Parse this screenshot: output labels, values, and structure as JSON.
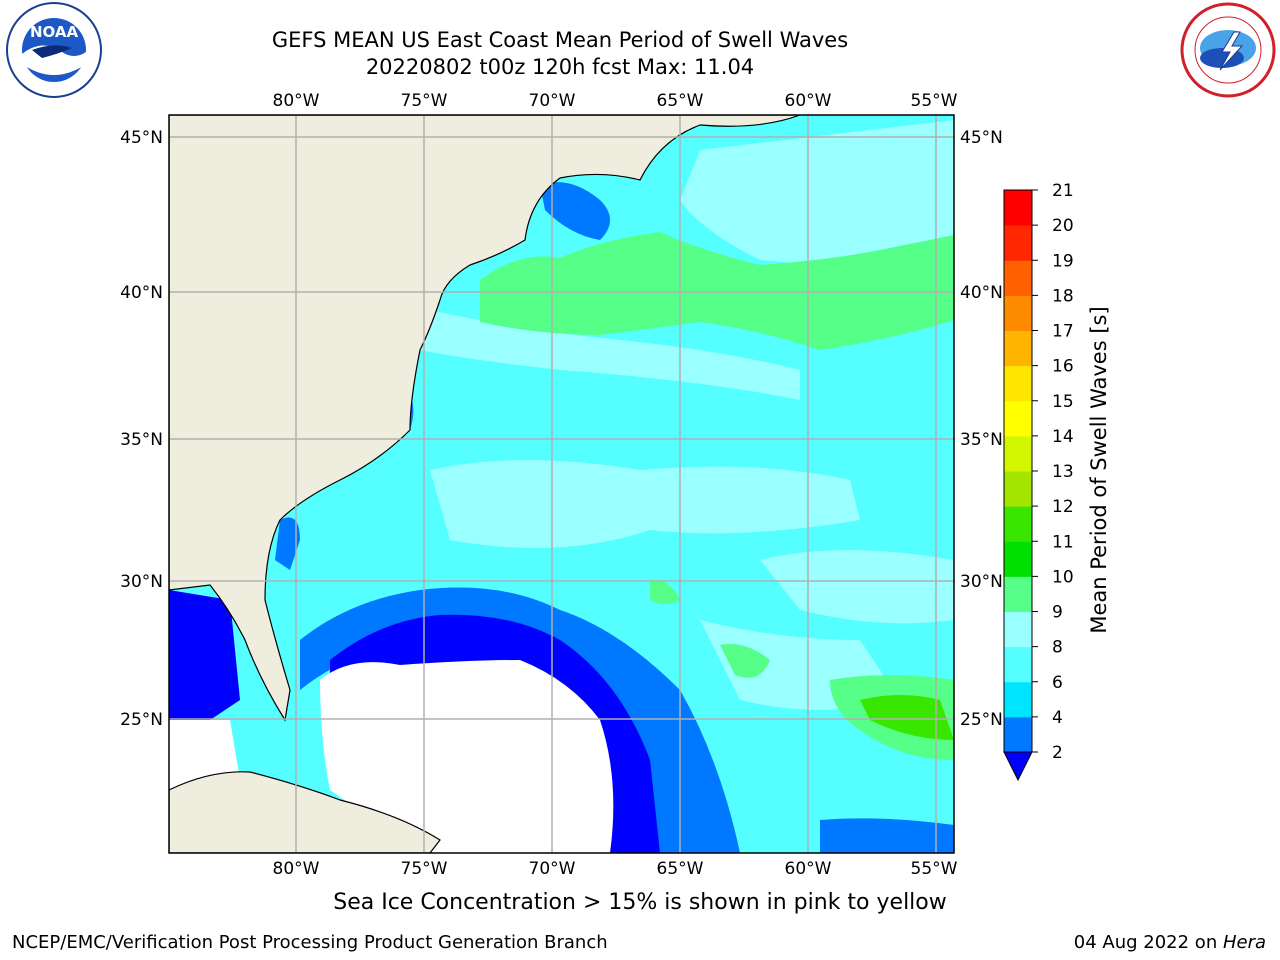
{
  "title_line1": "GEFS MEAN US East Coast Mean Period of Swell Waves",
  "title_line2": "20220802 t00z 120h fcst   Max: 11.04",
  "logos": {
    "left": "NOAA",
    "right": "National Weather Service"
  },
  "map": {
    "lon_labels": [
      "80°W",
      "75°W",
      "70°W",
      "65°W",
      "60°W",
      "55°W"
    ],
    "lat_labels": [
      "45°N",
      "40°N",
      "35°N",
      "30°N",
      "25°N"
    ],
    "land_color": "#efedde",
    "no_data_color": "#ffffff"
  },
  "colorbar": {
    "label": "Mean Period of Swell Waves [s]",
    "ticks": [
      "2",
      "4",
      "6",
      "8",
      "9",
      "10",
      "11",
      "12",
      "13",
      "14",
      "15",
      "16",
      "17",
      "18",
      "19",
      "20",
      "21"
    ],
    "colors": [
      "#0000ff",
      "#0078ff",
      "#00e5ff",
      "#55ffff",
      "#99ffff",
      "#55ff88",
      "#00e100",
      "#39e600",
      "#a5e600",
      "#d2f500",
      "#ffff00",
      "#ffe600",
      "#ffb400",
      "#ff8c00",
      "#ff6000",
      "#ff2800",
      "#ff0000"
    ]
  },
  "footer_note": "Sea Ice Concentration > 15% is shown in pink to yellow",
  "credit_left": "NCEP/EMC/Verification Post Processing Product Generation Branch",
  "credit_right_date": "04 Aug 2022 on ",
  "credit_right_host": "Hera"
}
